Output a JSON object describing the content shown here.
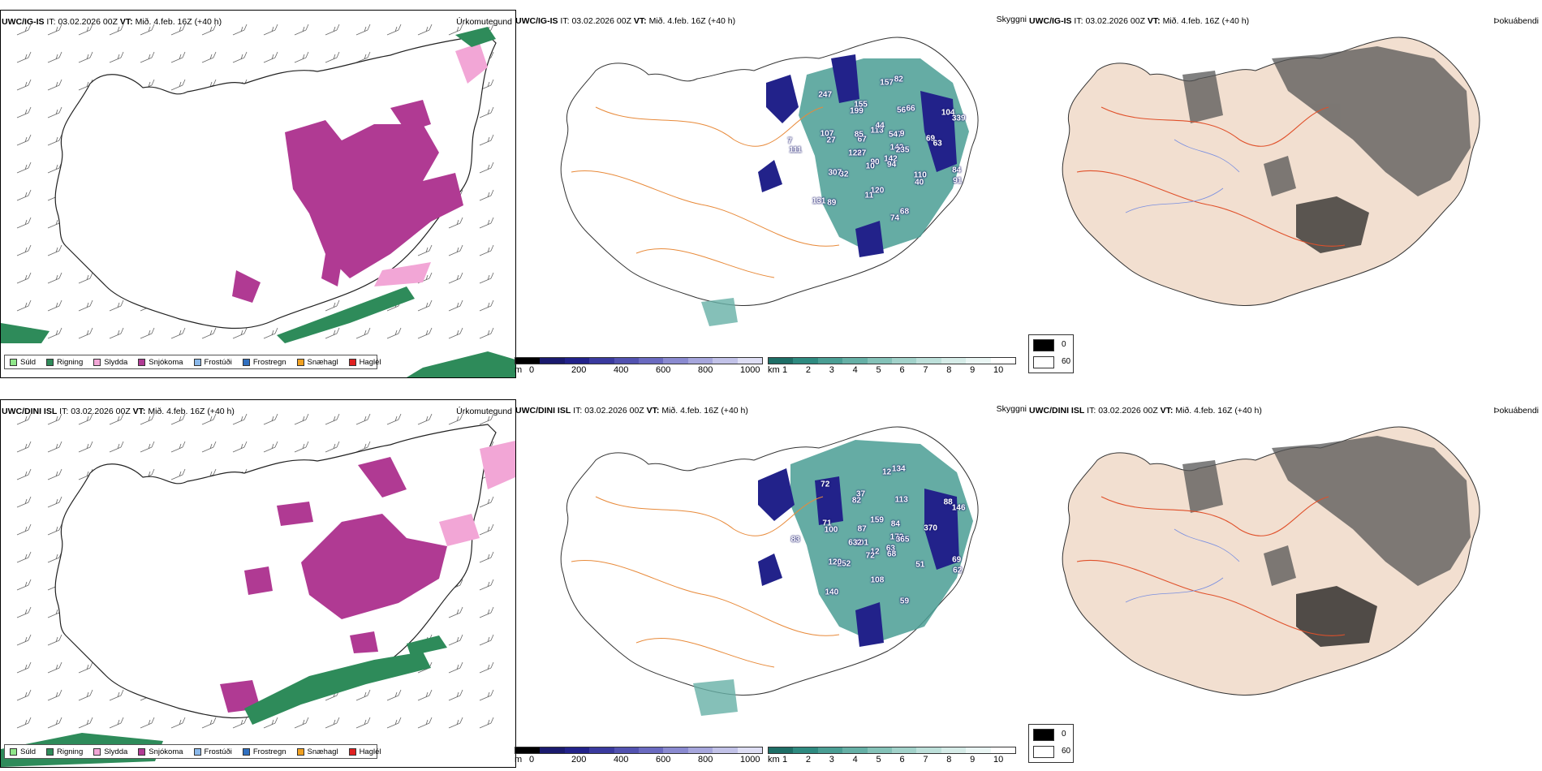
{
  "rows": [
    {
      "model": "UWC/IG-IS",
      "it_label": "IT:",
      "it_value": "03.02.2026 00Z",
      "vt_label": "VT:",
      "vt_value": "Mið. 4.feb. 16Z",
      "lead": "(+40 h)",
      "height_labels": [
        "142",
        "32",
        "157",
        "142",
        "27",
        "104",
        "90",
        "199",
        "84",
        "87",
        "56",
        "68",
        "67",
        "69",
        "89",
        "113",
        "110",
        "111",
        "547",
        "120",
        "247",
        "235",
        "307",
        "82",
        "94",
        "107",
        "339",
        "10",
        "155",
        "91",
        "122",
        "66",
        "74",
        "85",
        "63",
        "131",
        "44",
        "40",
        "7",
        "9",
        "11"
      ]
    },
    {
      "model": "UWC/DINI ISL",
      "it_label": "IT:",
      "it_value": "03.02.2026 00Z",
      "vt_label": "VT:",
      "vt_value": "Mið. 4.feb. 16Z",
      "lead": "(+40 h)",
      "height_labels": [
        "172",
        "252",
        "12",
        "63",
        "100",
        "88",
        "12",
        "82",
        "69",
        "101",
        "113",
        "59",
        "87",
        "370",
        "140",
        "159",
        "51",
        "83",
        "84",
        "108",
        "72",
        "365",
        "120",
        "134",
        "68",
        "71",
        "146",
        "72",
        "37",
        "62",
        "632"
      ]
    }
  ],
  "titles": {
    "precip_type": "Úrkomutegund",
    "visibility": "Skyggni",
    "fog": "Þokuábendi"
  },
  "precip_legend": [
    {
      "label": "Súld",
      "color": "#8fe68a"
    },
    {
      "label": "Rigning",
      "color": "#2e8b5a"
    },
    {
      "label": "Slydda",
      "color": "#f2a6d6"
    },
    {
      "label": "Snjókoma",
      "color": "#b03a93"
    },
    {
      "label": "Frostúði",
      "color": "#8ab8ea"
    },
    {
      "label": "Frostregn",
      "color": "#2f6fc0"
    },
    {
      "label": "Snæhagl",
      "color": "#f0a020"
    },
    {
      "label": "Haglél",
      "color": "#e02020"
    }
  ],
  "height_bar": {
    "unit": "m",
    "ticks": [
      "0",
      "200",
      "400",
      "600",
      "800",
      "1000"
    ],
    "colors": [
      "#000000",
      "#1a1a6e",
      "#22228a",
      "#3a3a9e",
      "#5252b0",
      "#6a6ac0",
      "#8a8ad0",
      "#a6a6dc",
      "#c2c2e8",
      "#dedef4"
    ]
  },
  "vis_bar": {
    "unit": "km",
    "ticks": [
      "1",
      "2",
      "3",
      "4",
      "5",
      "6",
      "7",
      "8",
      "9",
      "10"
    ],
    "colors": [
      "#1e6e66",
      "#2e8a80",
      "#4a9e94",
      "#66b0a6",
      "#84c2b8",
      "#a2d2ca",
      "#bde0da",
      "#d6ece8",
      "#eaf6f4",
      "#ffffff"
    ]
  },
  "fog_legend": [
    {
      "label": "0",
      "color": "#000000"
    },
    {
      "label": "60",
      "color": "#ffffff"
    }
  ]
}
